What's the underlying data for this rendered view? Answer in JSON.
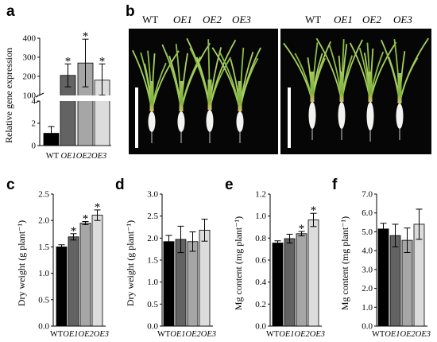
{
  "panel_labels": [
    "a",
    "b",
    "c",
    "d",
    "e",
    "f"
  ],
  "colors": {
    "WT": "#000000",
    "OE1": "#636363",
    "OE2": "#a6a6a6",
    "OE3": "#dcdcdc"
  },
  "panel_b": {
    "left_labels": [
      "WT",
      "OE1",
      "OE2",
      "OE3"
    ],
    "right_labels": [
      "WT",
      "OE1",
      "OE2",
      "OE3"
    ]
  },
  "chart_data": [
    {
      "id": "a",
      "type": "bar",
      "broken_axis": true,
      "ylabel": "Relative gene expression",
      "categories": [
        "WT",
        "OE1",
        "OE2",
        "OE3"
      ],
      "values": [
        1.1,
        205,
        270,
        180
      ],
      "errors": [
        0.6,
        60,
        125,
        85
      ],
      "significant": [
        false,
        true,
        true,
        true
      ],
      "yticks_lower": [
        0,
        2,
        4
      ],
      "yticks_upper": [
        100,
        200,
        300,
        400
      ]
    },
    {
      "id": "c",
      "type": "bar",
      "ylabel": "Dry weight (g plant⁻¹)",
      "categories": [
        "WT",
        "OE1",
        "OE2",
        "OE3"
      ],
      "values": [
        1.5,
        1.69,
        1.95,
        2.1
      ],
      "errors": [
        0.04,
        0.06,
        0.03,
        0.1
      ],
      "significant": [
        false,
        true,
        true,
        true
      ],
      "ylim": [
        0,
        2.5
      ],
      "yticks": [
        "0.0",
        "0.5",
        "1.0",
        "1.5",
        "2.0",
        "2.5"
      ]
    },
    {
      "id": "d",
      "type": "bar",
      "ylabel": "Dry weight (g plant⁻¹)",
      "categories": [
        "WT",
        "OE1",
        "OE2",
        "OE3"
      ],
      "values": [
        1.92,
        1.97,
        1.92,
        2.18
      ],
      "errors": [
        0.14,
        0.3,
        0.22,
        0.25
      ],
      "significant": [
        false,
        false,
        false,
        false
      ],
      "ylim": [
        0,
        3.0
      ],
      "yticks": [
        "0.0",
        "0.5",
        "1.0",
        "1.5",
        "2.0",
        "2.5",
        "3.0"
      ]
    },
    {
      "id": "e",
      "type": "bar",
      "ylabel": "Mg content (mg plant⁻¹)",
      "categories": [
        "WT",
        "OE1",
        "OE2",
        "OE3"
      ],
      "values": [
        0.755,
        0.795,
        0.84,
        0.965
      ],
      "errors": [
        0.02,
        0.04,
        0.02,
        0.06
      ],
      "significant": [
        false,
        false,
        true,
        true
      ],
      "ylim": [
        0,
        1.2
      ],
      "yticks": [
        "0.0",
        "0.2",
        "0.4",
        "0.6",
        "0.8",
        "1.0",
        "1.2"
      ]
    },
    {
      "id": "f",
      "type": "bar",
      "ylabel": "Mg content (mg plant⁻¹)",
      "categories": [
        "WT",
        "OE1",
        "OE2",
        "OE3"
      ],
      "values": [
        5.15,
        4.8,
        4.55,
        5.4
      ],
      "errors": [
        0.3,
        0.6,
        0.65,
        0.8
      ],
      "significant": [
        false,
        false,
        false,
        false
      ],
      "ylim": [
        0,
        7.0
      ],
      "yticks": [
        "0.0",
        "1.0",
        "2.0",
        "3.0",
        "4.0",
        "5.0",
        "6.0",
        "7.0"
      ]
    }
  ]
}
